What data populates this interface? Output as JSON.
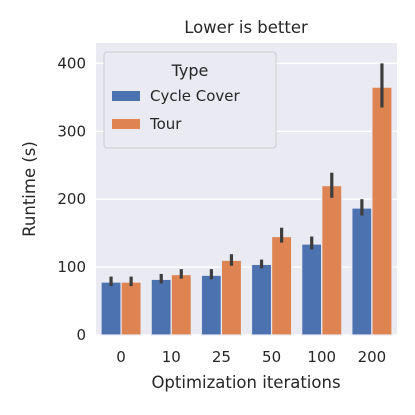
{
  "chart_data": {
    "type": "bar",
    "title": "Lower is better",
    "xlabel": "Optimization iterations",
    "ylabel": "Runtime (s)",
    "ylim": [
      0,
      430
    ],
    "yticks": [
      0,
      100,
      200,
      300,
      400
    ],
    "grid": true,
    "legend": {
      "title": "Type",
      "placement": "top-left"
    },
    "categories": [
      "0",
      "10",
      "25",
      "50",
      "100",
      "200"
    ],
    "series": [
      {
        "name": "Cycle Cover",
        "color": "#4c72b0",
        "values": [
          78,
          82,
          88,
          104,
          134,
          187
        ],
        "err_low": [
          72,
          76,
          82,
          98,
          126,
          176
        ],
        "err_high": [
          86,
          90,
          97,
          111,
          145,
          200
        ]
      },
      {
        "name": "Tour",
        "color": "#dd8452",
        "values": [
          78,
          89,
          110,
          145,
          220,
          365
        ],
        "err_low": [
          72,
          83,
          102,
          136,
          202,
          335
        ],
        "err_high": [
          86,
          97,
          119,
          158,
          239,
          400
        ]
      }
    ]
  }
}
